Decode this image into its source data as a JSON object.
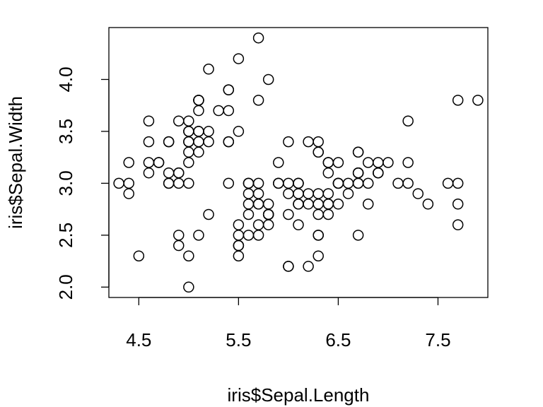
{
  "chart_data": {
    "type": "scatter",
    "title": "",
    "xlabel": "iris$Sepal.Length",
    "ylabel": "iris$Sepal.Width",
    "xlim": [
      4.2,
      8.0
    ],
    "ylim": [
      1.9,
      4.5
    ],
    "xticks": [
      4.5,
      5.5,
      6.5,
      7.5
    ],
    "yticks": [
      2.0,
      2.5,
      3.0,
      3.5,
      4.0
    ],
    "xtick_labels": [
      "4.5",
      "5.5",
      "6.5",
      "7.5"
    ],
    "ytick_labels": [
      "2.0",
      "2.5",
      "3.0",
      "3.5",
      "4.0"
    ],
    "grid": false,
    "legend": "none",
    "marker": "open-circle",
    "points": [
      [
        5.1,
        3.5
      ],
      [
        4.9,
        3.0
      ],
      [
        4.7,
        3.2
      ],
      [
        4.6,
        3.1
      ],
      [
        5.0,
        3.6
      ],
      [
        5.4,
        3.9
      ],
      [
        4.6,
        3.4
      ],
      [
        5.0,
        3.4
      ],
      [
        4.4,
        2.9
      ],
      [
        4.9,
        3.1
      ],
      [
        5.4,
        3.7
      ],
      [
        4.8,
        3.4
      ],
      [
        4.8,
        3.0
      ],
      [
        4.3,
        3.0
      ],
      [
        5.8,
        4.0
      ],
      [
        5.7,
        4.4
      ],
      [
        5.4,
        3.9
      ],
      [
        5.1,
        3.5
      ],
      [
        5.7,
        3.8
      ],
      [
        5.1,
        3.8
      ],
      [
        5.4,
        3.4
      ],
      [
        5.1,
        3.7
      ],
      [
        4.6,
        3.6
      ],
      [
        5.1,
        3.3
      ],
      [
        4.8,
        3.4
      ],
      [
        5.0,
        3.0
      ],
      [
        5.0,
        3.4
      ],
      [
        5.2,
        3.5
      ],
      [
        5.2,
        3.4
      ],
      [
        4.7,
        3.2
      ],
      [
        4.8,
        3.1
      ],
      [
        5.4,
        3.4
      ],
      [
        5.2,
        4.1
      ],
      [
        5.5,
        4.2
      ],
      [
        4.9,
        3.1
      ],
      [
        5.0,
        3.2
      ],
      [
        5.5,
        3.5
      ],
      [
        4.9,
        3.6
      ],
      [
        4.4,
        3.0
      ],
      [
        5.1,
        3.4
      ],
      [
        5.0,
        3.5
      ],
      [
        4.5,
        2.3
      ],
      [
        4.4,
        3.2
      ],
      [
        5.0,
        3.5
      ],
      [
        5.1,
        3.8
      ],
      [
        4.8,
        3.0
      ],
      [
        5.1,
        3.8
      ],
      [
        4.6,
        3.2
      ],
      [
        5.3,
        3.7
      ],
      [
        5.0,
        3.3
      ],
      [
        7.0,
        3.2
      ],
      [
        6.4,
        3.2
      ],
      [
        6.9,
        3.1
      ],
      [
        5.5,
        2.3
      ],
      [
        6.5,
        2.8
      ],
      [
        5.7,
        2.8
      ],
      [
        6.3,
        3.3
      ],
      [
        4.9,
        2.4
      ],
      [
        6.6,
        2.9
      ],
      [
        5.2,
        2.7
      ],
      [
        5.0,
        2.0
      ],
      [
        5.9,
        3.0
      ],
      [
        6.0,
        2.2
      ],
      [
        6.1,
        2.9
      ],
      [
        5.6,
        2.9
      ],
      [
        6.7,
        3.1
      ],
      [
        5.6,
        3.0
      ],
      [
        5.8,
        2.7
      ],
      [
        6.2,
        2.2
      ],
      [
        5.6,
        2.5
      ],
      [
        5.9,
        3.2
      ],
      [
        6.1,
        2.8
      ],
      [
        6.3,
        2.5
      ],
      [
        6.1,
        2.8
      ],
      [
        6.4,
        2.9
      ],
      [
        6.6,
        3.0
      ],
      [
        6.8,
        2.8
      ],
      [
        6.7,
        3.0
      ],
      [
        6.0,
        2.9
      ],
      [
        5.7,
        2.6
      ],
      [
        5.5,
        2.4
      ],
      [
        5.5,
        2.4
      ],
      [
        5.8,
        2.7
      ],
      [
        6.0,
        2.7
      ],
      [
        5.4,
        3.0
      ],
      [
        6.0,
        3.4
      ],
      [
        6.7,
        3.1
      ],
      [
        6.3,
        2.3
      ],
      [
        5.6,
        3.0
      ],
      [
        5.5,
        2.5
      ],
      [
        5.5,
        2.6
      ],
      [
        6.1,
        3.0
      ],
      [
        5.8,
        2.6
      ],
      [
        5.0,
        2.3
      ],
      [
        5.6,
        2.7
      ],
      [
        5.7,
        3.0
      ],
      [
        5.7,
        2.9
      ],
      [
        6.2,
        2.9
      ],
      [
        5.1,
        2.5
      ],
      [
        5.7,
        2.8
      ],
      [
        6.3,
        3.3
      ],
      [
        5.8,
        2.7
      ],
      [
        7.1,
        3.0
      ],
      [
        6.3,
        2.9
      ],
      [
        6.5,
        3.0
      ],
      [
        7.6,
        3.0
      ],
      [
        4.9,
        2.5
      ],
      [
        7.3,
        2.9
      ],
      [
        6.7,
        2.5
      ],
      [
        7.2,
        3.6
      ],
      [
        6.5,
        3.2
      ],
      [
        6.4,
        2.7
      ],
      [
        6.8,
        3.0
      ],
      [
        5.7,
        2.5
      ],
      [
        5.8,
        2.8
      ],
      [
        6.4,
        3.2
      ],
      [
        6.5,
        3.0
      ],
      [
        7.7,
        3.8
      ],
      [
        7.7,
        2.6
      ],
      [
        6.0,
        2.2
      ],
      [
        6.9,
        3.2
      ],
      [
        5.6,
        2.8
      ],
      [
        7.7,
        2.8
      ],
      [
        6.3,
        2.7
      ],
      [
        6.7,
        3.3
      ],
      [
        7.2,
        3.2
      ],
      [
        6.2,
        2.8
      ],
      [
        6.1,
        3.0
      ],
      [
        6.4,
        2.8
      ],
      [
        7.2,
        3.0
      ],
      [
        7.4,
        2.8
      ],
      [
        7.9,
        3.8
      ],
      [
        6.4,
        2.8
      ],
      [
        6.3,
        2.8
      ],
      [
        6.1,
        2.6
      ],
      [
        7.7,
        3.0
      ],
      [
        6.3,
        3.4
      ],
      [
        6.4,
        3.1
      ],
      [
        6.0,
        3.0
      ],
      [
        6.9,
        3.1
      ],
      [
        6.7,
        3.1
      ],
      [
        6.9,
        3.1
      ],
      [
        5.8,
        2.7
      ],
      [
        6.8,
        3.2
      ],
      [
        6.7,
        3.3
      ],
      [
        6.7,
        3.0
      ],
      [
        6.3,
        2.5
      ],
      [
        6.5,
        3.0
      ],
      [
        6.2,
        3.4
      ],
      [
        5.9,
        3.0
      ]
    ]
  }
}
